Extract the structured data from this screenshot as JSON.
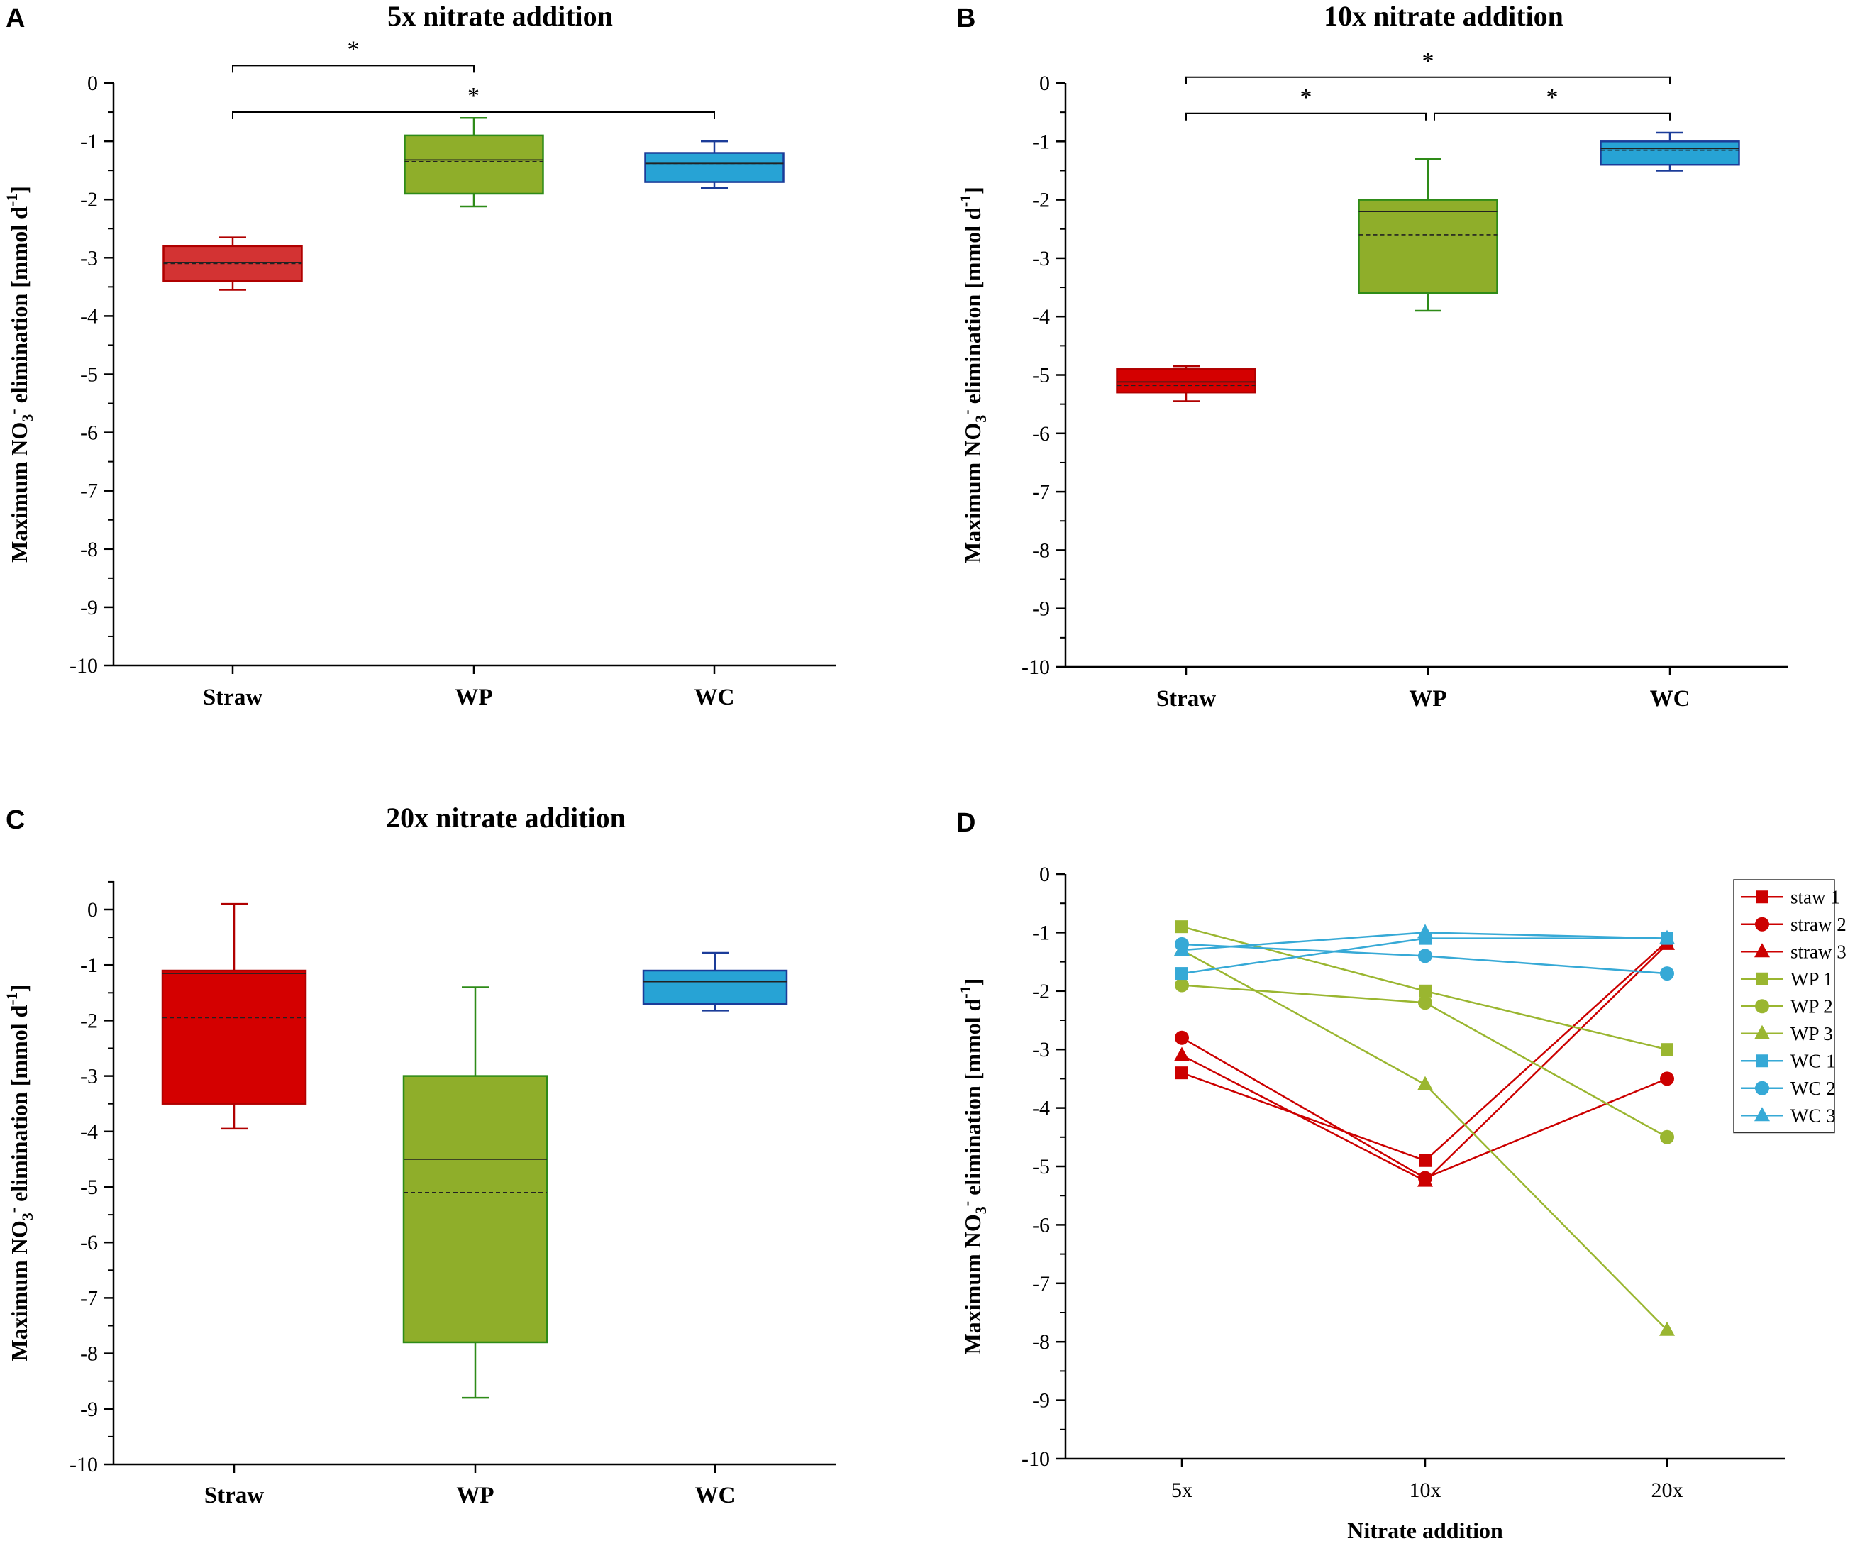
{
  "figure": {
    "colors": {
      "straw_fill": "#d40000",
      "straw_fill_a": "#d33333",
      "straw_edge": "#b00000",
      "wp_fill": "#8fae2a",
      "wp_edge": "#2e8b18",
      "wc_fill": "#27a3d5",
      "wc_edge": "#1b3c99",
      "line_straw": "#cc0000",
      "line_wp": "#9ab630",
      "line_wc": "#36a9d6"
    }
  },
  "chart_data": [
    {
      "panel": "A",
      "type": "box",
      "title": "5x nitrate addition",
      "ylabel": "Maximum NO3- elimination [mmol d-1]",
      "ylim": [
        -10,
        0
      ],
      "yticks": [
        "0",
        "-1",
        "-2",
        "-3",
        "-4",
        "-5",
        "-6",
        "-7",
        "-8",
        "-9",
        "-10"
      ],
      "categories": [
        "Straw",
        "WP",
        "WC"
      ],
      "boxes": [
        {
          "category": "Straw",
          "whisker_high": -2.65,
          "q3": -2.8,
          "median": -3.08,
          "mean": -3.1,
          "q1": -3.4,
          "whisker_low": -3.55
        },
        {
          "category": "WP",
          "whisker_high": -0.6,
          "q3": -0.9,
          "median": -1.32,
          "mean": -1.35,
          "q1": -1.9,
          "whisker_low": -2.12
        },
        {
          "category": "WC",
          "whisker_high": -1.0,
          "q3": -1.2,
          "median": -1.38,
          "mean": -1.38,
          "q1": -1.7,
          "whisker_low": -1.8
        }
      ],
      "significance": [
        {
          "from": "Straw",
          "to": "WP",
          "label": "*",
          "level": 0.3
        },
        {
          "from": "Straw",
          "to": "WC",
          "label": "*",
          "level": -0.5
        }
      ]
    },
    {
      "panel": "B",
      "type": "box",
      "title": "10x nitrate addition",
      "ylabel": "Maximum NO3- elimination [mmol d-1]",
      "ylim": [
        -10,
        0
      ],
      "yticks": [
        "0",
        "-1",
        "-2",
        "-3",
        "-4",
        "-5",
        "-6",
        "-7",
        "-8",
        "-9",
        "-10"
      ],
      "categories": [
        "Straw",
        "WP",
        "WC"
      ],
      "boxes": [
        {
          "category": "Straw",
          "whisker_high": -4.85,
          "q3": -4.9,
          "median": -5.12,
          "mean": -5.18,
          "q1": -5.3,
          "whisker_low": -5.45
        },
        {
          "category": "WP",
          "whisker_high": -1.3,
          "q3": -2.0,
          "median": -2.2,
          "mean": -2.6,
          "q1": -3.6,
          "whisker_low": -3.9
        },
        {
          "category": "WC",
          "whisker_high": -0.85,
          "q3": -1.0,
          "median": -1.12,
          "mean": -1.15,
          "q1": -1.4,
          "whisker_low": -1.5
        }
      ],
      "significance": [
        {
          "from": "Straw",
          "to": "WC",
          "label": "*",
          "level": 0.1
        },
        {
          "from": "Straw",
          "to": "WP",
          "label": "*",
          "level": -0.52
        },
        {
          "from": "WP",
          "to": "WC",
          "label": "*",
          "level": -0.52
        }
      ]
    },
    {
      "panel": "C",
      "type": "box",
      "title": "20x nitrate addition",
      "ylabel": "Maximum NO3- elimination [mmol d-1]",
      "ylim": [
        -10,
        0.5
      ],
      "yticks": [
        "0",
        "-1",
        "-2",
        "-3",
        "-4",
        "-5",
        "-6",
        "-7",
        "-8",
        "-9",
        "-10"
      ],
      "categories": [
        "Straw",
        "WP",
        "WC"
      ],
      "boxes": [
        {
          "category": "Straw",
          "whisker_high": 0.1,
          "q3": -1.1,
          "median": -1.15,
          "mean": -1.95,
          "q1": -3.5,
          "whisker_low": -3.95
        },
        {
          "category": "WP",
          "whisker_high": -1.4,
          "q3": -3.0,
          "median": -4.5,
          "mean": -5.1,
          "q1": -7.8,
          "whisker_low": -8.8
        },
        {
          "category": "WC",
          "whisker_high": -0.78,
          "q3": -1.1,
          "median": -1.3,
          "mean": -1.3,
          "q1": -1.7,
          "whisker_low": -1.82
        }
      ],
      "significance": []
    },
    {
      "panel": "D",
      "type": "line",
      "ylabel": "Maximum NO3- elimination [mmol d-1]",
      "xlabel": "Nitrate addition",
      "ylim": [
        -10,
        0
      ],
      "yticks": [
        "0",
        "-1",
        "-2",
        "-3",
        "-4",
        "-5",
        "-6",
        "-7",
        "-8",
        "-9",
        "-10"
      ],
      "categories": [
        "5x",
        "10x",
        "20x"
      ],
      "legend_position": "top-right",
      "series": [
        {
          "name": "staw 1",
          "group": "straw",
          "marker": "square",
          "values": [
            -3.4,
            -4.9,
            -1.15
          ]
        },
        {
          "name": "straw 2",
          "group": "straw",
          "marker": "circle",
          "values": [
            -2.8,
            -5.2,
            -3.5
          ]
        },
        {
          "name": "straw 3",
          "group": "straw",
          "marker": "triangle",
          "values": [
            -3.1,
            -5.25,
            -1.2
          ]
        },
        {
          "name": "WP 1",
          "group": "wp",
          "marker": "square",
          "values": [
            -0.9,
            -2.0,
            -3.0
          ]
        },
        {
          "name": "WP 2",
          "group": "wp",
          "marker": "circle",
          "values": [
            -1.9,
            -2.2,
            -4.5
          ]
        },
        {
          "name": "WP 3",
          "group": "wp",
          "marker": "triangle",
          "values": [
            -1.3,
            -3.6,
            -7.8
          ]
        },
        {
          "name": "WC 1",
          "group": "wc",
          "marker": "square",
          "values": [
            -1.7,
            -1.1,
            -1.1
          ]
        },
        {
          "name": "WC 2",
          "group": "wc",
          "marker": "circle",
          "values": [
            -1.2,
            -1.4,
            -1.7
          ]
        },
        {
          "name": "WC 3",
          "group": "wc",
          "marker": "triangle",
          "values": [
            -1.3,
            -1.0,
            -1.1
          ]
        }
      ]
    }
  ]
}
